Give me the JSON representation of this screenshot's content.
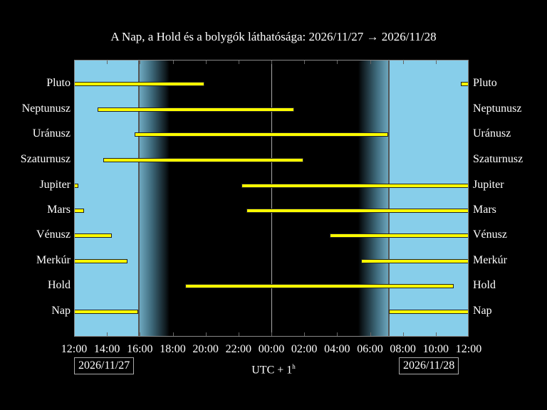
{
  "title": "A Nap, a Hold és a bolygók láthatósága: 2026/11/27 → 2026/11/28",
  "timezone_label": "UTC + 1",
  "timezone_sup": "h",
  "date_start": "2026/11/27",
  "date_end": "2026/11/28",
  "colors": {
    "day": "#87ceea",
    "night": "#000000",
    "bar": "#ffff00",
    "text": "#ffffff"
  },
  "chart_data": {
    "type": "bar",
    "subtype": "horizontal-range (visibility timeline)",
    "title": "A Nap, a Hold és a bolygók láthatósága: 2026/11/27 → 2026/11/28",
    "xlabel": "UTC + 1h",
    "x_range": [
      "2026/11/27 12:00",
      "2026/11/28 12:00"
    ],
    "x_ticks": [
      "12:00",
      "14:00",
      "16:00",
      "18:00",
      "20:00",
      "22:00",
      "00:00",
      "02:00",
      "04:00",
      "06:00",
      "08:00",
      "10:00",
      "12:00"
    ],
    "categories": [
      "Pluto",
      "Neptunusz",
      "Uránusz",
      "Szaturnusz",
      "Jupiter",
      "Mars",
      "Vénusz",
      "Merkúr",
      "Hold",
      "Nap"
    ],
    "daylight": [
      {
        "start": "12:00",
        "end": "15:55"
      },
      {
        "start": "07:10",
        "end": "12:00"
      }
    ],
    "twilight": [
      {
        "start": "15:55",
        "end": "17:40"
      },
      {
        "start": "05:25",
        "end": "07:10"
      }
    ],
    "series": [
      {
        "name": "Pluto",
        "intervals": [
          [
            "12:00",
            "19:55"
          ],
          [
            "11:30",
            "12:00"
          ]
        ]
      },
      {
        "name": "Neptunusz",
        "intervals": [
          [
            "13:25",
            "01:25"
          ]
        ]
      },
      {
        "name": "Uránusz",
        "intervals": [
          [
            "15:40",
            "07:05"
          ]
        ]
      },
      {
        "name": "Szaturnusz",
        "intervals": [
          [
            "13:45",
            "01:55"
          ]
        ]
      },
      {
        "name": "Jupiter",
        "intervals": [
          [
            "12:00",
            "12:15"
          ],
          [
            "22:15",
            "12:00"
          ]
        ]
      },
      {
        "name": "Mars",
        "intervals": [
          [
            "12:00",
            "12:35"
          ],
          [
            "22:35",
            "12:00"
          ]
        ]
      },
      {
        "name": "Vénusz",
        "intervals": [
          [
            "12:00",
            "14:20"
          ],
          [
            "03:35",
            "12:00"
          ]
        ]
      },
      {
        "name": "Merkúr",
        "intervals": [
          [
            "12:00",
            "15:15"
          ],
          [
            "05:30",
            "12:00"
          ]
        ]
      },
      {
        "name": "Hold",
        "intervals": [
          [
            "18:45",
            "11:05"
          ]
        ]
      },
      {
        "name": "Nap",
        "intervals": [
          [
            "12:00",
            "15:55"
          ],
          [
            "07:10",
            "12:00"
          ]
        ]
      }
    ],
    "grid": false,
    "legend": "none"
  },
  "px": {
    "rows": [
      118,
      154,
      189,
      225,
      261,
      296,
      331,
      367,
      402,
      438
    ],
    "bars": [
      [
        [
          104,
          287
        ],
        [
          647,
          658
        ]
      ],
      [
        [
          137,
          413
        ]
      ],
      [
        [
          189,
          545
        ]
      ],
      [
        [
          145,
          426
        ]
      ],
      [
        [
          104,
          110
        ],
        [
          339,
          658
        ]
      ],
      [
        [
          104,
          118
        ],
        [
          346,
          658
        ]
      ],
      [
        [
          104,
          157
        ],
        [
          463,
          658
        ]
      ],
      [
        [
          104,
          179
        ],
        [
          507,
          658
        ]
      ],
      [
        [
          260,
          637
        ]
      ],
      [
        [
          104,
          194
        ],
        [
          546,
          658
        ]
      ]
    ]
  }
}
